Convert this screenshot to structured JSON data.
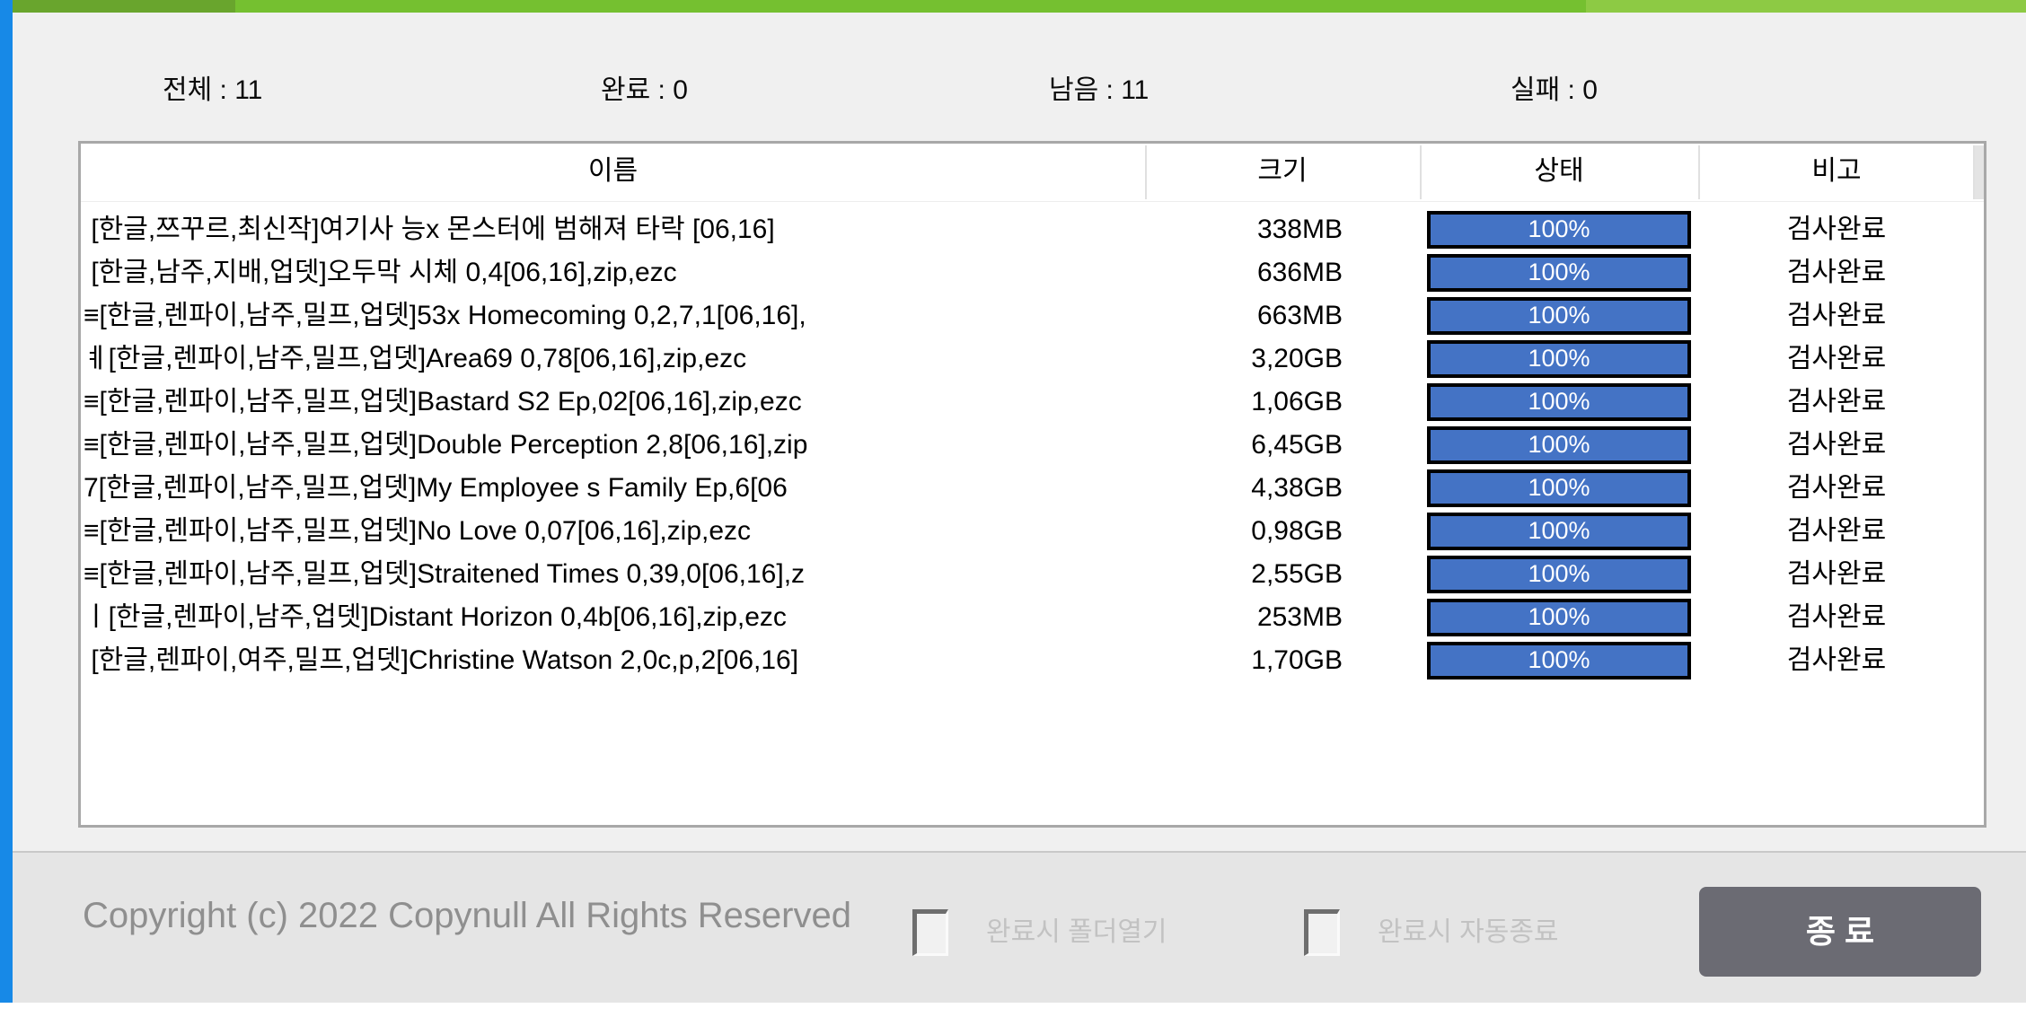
{
  "colors": {
    "edge_accent_blue": "#1789e7",
    "topbar_green_dark": "#69a52d",
    "topbar_green_mid": "#75c030",
    "topbar_green_light": "#8dca44",
    "progress_fill_blue": "#4473c5",
    "exit_button_gray": "#6b6b73"
  },
  "stats": {
    "items": [
      {
        "text": "전체 : 11"
      },
      {
        "text": "완료 : 0"
      },
      {
        "text": "남음 : 11"
      },
      {
        "text": "실패 : 0"
      }
    ]
  },
  "table": {
    "headers": [
      "이름",
      "크기",
      "상태",
      "비고"
    ],
    "rows": [
      {
        "name": " [한글,쯔꾸르,최신작]여기사 능x 몬스터에 범해져 타락 [06,16]",
        "size": "338MB",
        "progress": "100%",
        "remark": "검사완료"
      },
      {
        "name": " [한글,남주,지배,업뎃]오두막 시체 0,4[06,16],zip,ezc",
        "size": "636MB",
        "progress": "100%",
        "remark": "검사완료"
      },
      {
        "name": "≡[한글,렌파이,남주,밀프,업뎃]53x Homecoming 0,2,7,1[06,16],",
        "size": "663MB",
        "progress": "100%",
        "remark": "검사완료"
      },
      {
        "name": "ㅖ[한글,렌파이,남주,밀프,업뎃]Area69 0,78[06,16],zip,ezc",
        "size": "3,20GB",
        "progress": "100%",
        "remark": "검사완료"
      },
      {
        "name": "≡[한글,렌파이,남주,밀프,업뎃]Bastard S2 Ep,02[06,16],zip,ezc",
        "size": "1,06GB",
        "progress": "100%",
        "remark": "검사완료"
      },
      {
        "name": "≡[한글,렌파이,남주,밀프,업뎃]Double Perception 2,8[06,16],zip",
        "size": "6,45GB",
        "progress": "100%",
        "remark": "검사완료"
      },
      {
        "name": "7[한글,렌파이,남주,밀프,업뎃]My Employee s Family Ep,6[06",
        "size": "4,38GB",
        "progress": "100%",
        "remark": "검사완료"
      },
      {
        "name": "≡[한글,렌파이,남주,밀프,업뎃]No Love 0,07[06,16],zip,ezc",
        "size": "0,98GB",
        "progress": "100%",
        "remark": "검사완료"
      },
      {
        "name": "≡[한글,렌파이,남주,밀프,업뎃]Straitened Times 0,39,0[06,16],z",
        "size": "2,55GB",
        "progress": "100%",
        "remark": "검사완료"
      },
      {
        "name": "ㅣ[한글,렌파이,남주,업뎃]Distant Horizon 0,4b[06,16],zip,ezc",
        "size": "253MB",
        "progress": "100%",
        "remark": "검사완료"
      },
      {
        "name": " [한글,렌파이,여주,밀프,업뎃]Christine Watson 2,0c,p,2[06,16]",
        "size": "1,70GB",
        "progress": "100%",
        "remark": "검사완료"
      }
    ]
  },
  "footer": {
    "copyright": "Copyright (c) 2022 Copynull All Rights Reserved",
    "checkbox_open_folder_label": "완료시 폴더열기",
    "checkbox_auto_exit_label": "완료시 자동종료",
    "exit_button_label": "종 료"
  }
}
